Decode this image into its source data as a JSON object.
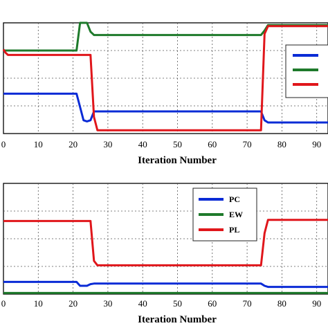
{
  "chart_data": [
    {
      "type": "line",
      "xlabel": "Iteration Number",
      "ylabel": "",
      "xlim": [
        0,
        95
      ],
      "ylim": [
        0,
        1
      ],
      "grid": true,
      "legend_position": "right",
      "x_ticks": [
        "0",
        "10",
        "20",
        "30",
        "40",
        "50",
        "60",
        "70",
        "80",
        "90"
      ],
      "series": [
        {
          "color": "#0a2bd6",
          "x": [
            0,
            21,
            22,
            23,
            24,
            25,
            26,
            74,
            75,
            76,
            95
          ],
          "y": [
            0.36,
            0.36,
            0.24,
            0.12,
            0.11,
            0.12,
            0.2,
            0.2,
            0.12,
            0.1,
            0.1
          ]
        },
        {
          "color": "#1e7a2b",
          "x": [
            0,
            21,
            22,
            24,
            25,
            26,
            74,
            75,
            76,
            95
          ],
          "y": [
            0.75,
            0.75,
            1.0,
            1.0,
            0.92,
            0.89,
            0.89,
            0.93,
            0.98,
            0.98
          ]
        },
        {
          "color": "#e0161b",
          "x": [
            0,
            0.6,
            1.3,
            25,
            26,
            27,
            74,
            75,
            76,
            95
          ],
          "y": [
            0.76,
            0.73,
            0.71,
            0.71,
            0.15,
            0.03,
            0.03,
            0.9,
            0.97,
            0.97
          ]
        }
      ]
    },
    {
      "type": "line",
      "xlabel": "Iteration Number",
      "ylabel": "",
      "xlim": [
        0,
        95
      ],
      "ylim": [
        0,
        1
      ],
      "grid": true,
      "legend_position": "top-right",
      "x_ticks": [
        "0",
        "10",
        "20",
        "30",
        "40",
        "50",
        "60",
        "70",
        "80",
        "90"
      ],
      "series": [
        {
          "name": "PC",
          "color": "#0a2bd6",
          "x": [
            0,
            21,
            22,
            24,
            25,
            26,
            74,
            75,
            76,
            95
          ],
          "y": [
            0.11,
            0.11,
            0.075,
            0.075,
            0.09,
            0.095,
            0.095,
            0.075,
            0.065,
            0.065
          ]
        },
        {
          "name": "EW",
          "color": "#1e7a2b",
          "x": [
            0,
            95
          ],
          "y": [
            0.01,
            0.01
          ]
        },
        {
          "name": "PL",
          "color": "#e0161b",
          "x": [
            0,
            25,
            26,
            27,
            74,
            75,
            76,
            95
          ],
          "y": [
            0.66,
            0.66,
            0.3,
            0.26,
            0.26,
            0.55,
            0.67,
            0.67
          ]
        }
      ]
    }
  ]
}
